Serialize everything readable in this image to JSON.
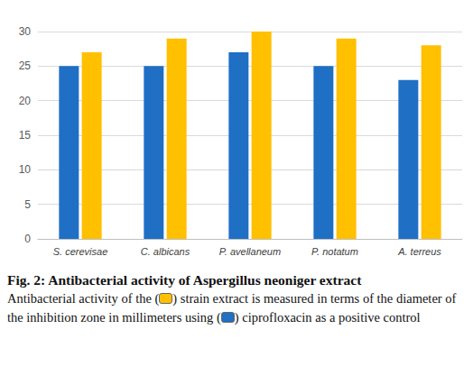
{
  "chart_data": {
    "type": "bar",
    "title": "Fig. 2: Antibacterial activity of Aspergillus neoniger extract",
    "subtitle": [
      "Antibacterial activity of the (",
      ") strain extract is measured in terms of the diameter of the inhibition zone in millimeters using (",
      ") ciprofloxacin as a positive control"
    ],
    "categories": [
      "S. cerevisae",
      "C. albicans",
      "P. avellaneum",
      "P. notatum",
      "A. terreus"
    ],
    "series": [
      {
        "color": "#1f6fc5",
        "values": [
          25,
          25,
          27,
          25,
          23
        ]
      },
      {
        "color": "#ffc000",
        "values": [
          27,
          29,
          30,
          29,
          28
        ]
      }
    ],
    "ylim": [
      0,
      30
    ],
    "yticks": [
      0,
      5,
      10,
      15,
      20,
      25,
      30
    ],
    "grid": true
  }
}
